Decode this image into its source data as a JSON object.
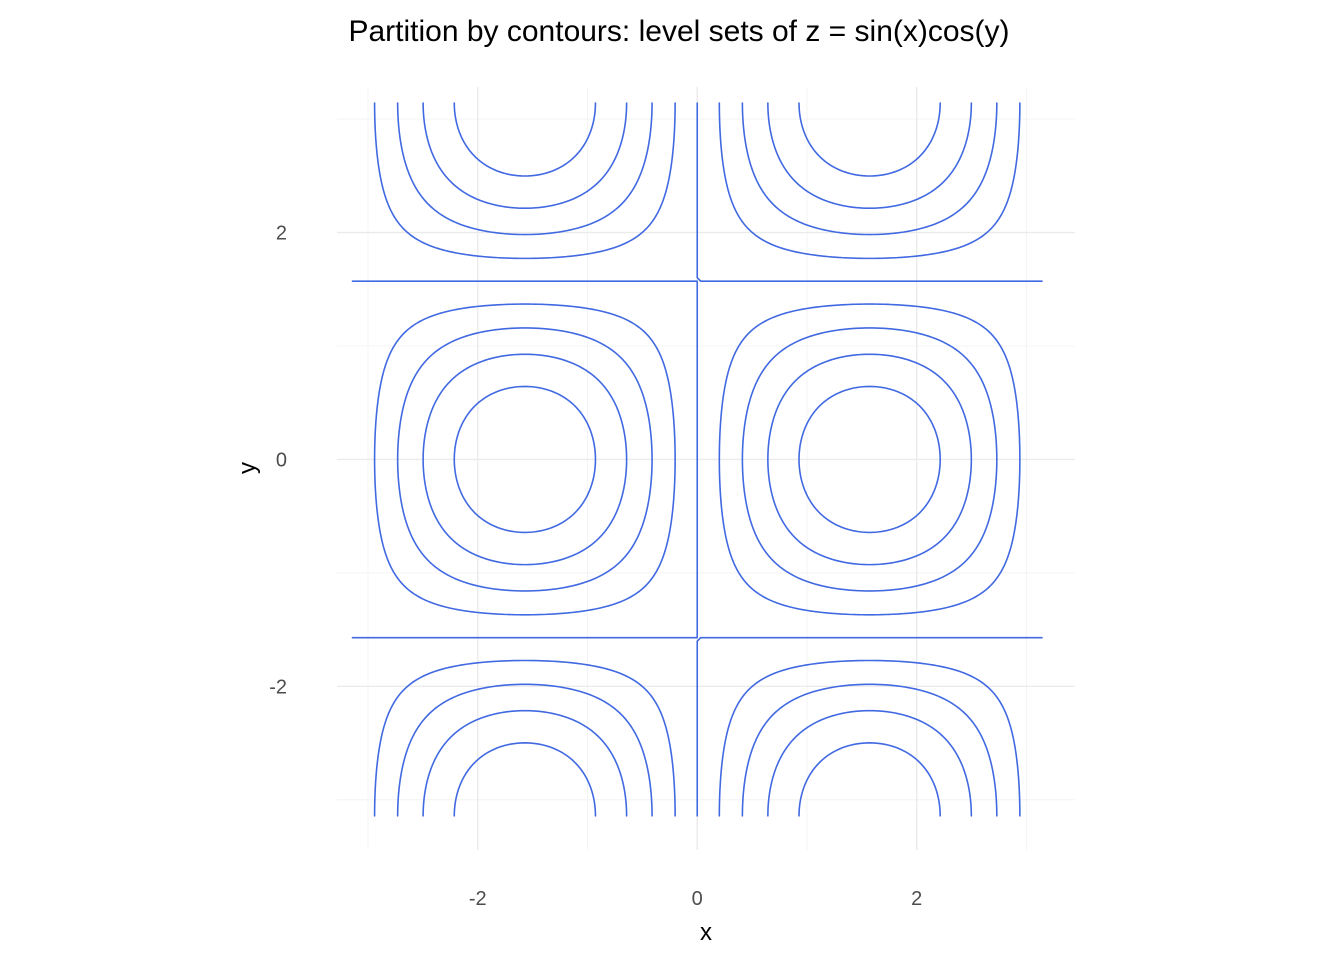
{
  "chart_data": {
    "type": "contour",
    "title": "Partition by contours: level sets of z = sin(x)cos(y)",
    "xlabel": "x",
    "ylabel": "y",
    "function": "z = sin(x)cos(y)",
    "xlim": [
      -3.2828,
      3.4426
    ],
    "ylim": [
      -3.4426,
      3.2828
    ],
    "data_domain_x": [
      -3.14159,
      3.14159
    ],
    "data_domain_y": [
      -3.14159,
      3.14159
    ],
    "levels": [
      -0.8,
      -0.6,
      -0.4,
      -0.2,
      0,
      0.2,
      0.4,
      0.6,
      0.8
    ],
    "x_ticks": [
      -2,
      0,
      2
    ],
    "y_ticks": [
      -2,
      0,
      2
    ],
    "x_tick_labels": [
      "-2",
      "0",
      "2"
    ],
    "y_tick_labels": [
      "-2",
      "0",
      "2"
    ],
    "minor_breaks": [
      -3,
      -1,
      1,
      3
    ],
    "grid": true,
    "line_color": "#4169E1",
    "background": "#FFFFFF"
  }
}
